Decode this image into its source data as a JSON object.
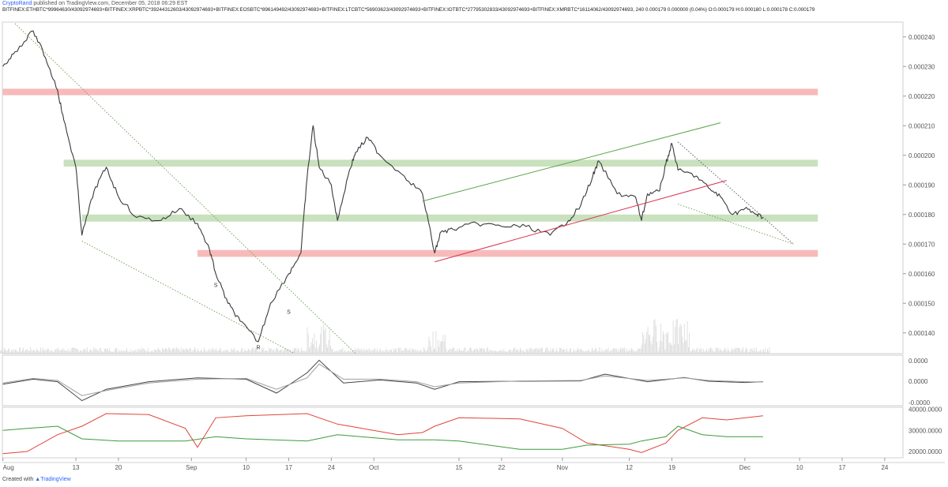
{
  "header": {
    "author": "CryptoRand",
    "published": "published on TradingView.com, December 05, 2018 06:29 EST",
    "symbol_line": "BITFINEX:ETHBTC*99964630/43092974693+BITFINEX:XRPBTC*39244312603/43092974693+BITFINEX:EOSBTC*896149492/43092974693+BITFINEX:LTCBTC*56903623/43092974693+BITFINEX:IOTBTC*27795302833/43092974693+BITFINEX:XMRBTC*16114062/43092974693, 240  0.000179  0.000000 (0.04%)  O:0.000179  H:0.000180  L:0.000178  C:0.000179"
  },
  "footer": {
    "created_with": "Created with",
    "brand": "TradingView"
  },
  "chart_data": {
    "type": "line",
    "interval": "240",
    "x_tick_labels": [
      "Aug",
      "13",
      "20",
      "Sep",
      "10",
      "17",
      "24",
      "Oct",
      "15",
      "22",
      "Nov",
      "12",
      "19",
      "Dec",
      "10",
      "17",
      "24"
    ],
    "main_pane": {
      "y_tick_labels": [
        "0.000240",
        "0.000230",
        "0.000220",
        "0.000210",
        "0.000200",
        "0.000190",
        "0.000180",
        "0.000170",
        "0.000160",
        "0.000150",
        "0.000140"
      ],
      "ylim": [
        0.000133,
        0.000245
      ],
      "series": [
        {
          "name": "",
          "x": [
            "2018-08-01",
            "2018-08-03",
            "2018-08-06",
            "2018-08-08",
            "2018-08-10",
            "2018-08-11",
            "2018-08-13",
            "2018-08-14",
            "2018-08-16",
            "2018-08-18",
            "2018-08-20",
            "2018-08-23",
            "2018-08-27",
            "2018-08-30",
            "2018-09-02",
            "2018-09-04",
            "2018-09-05",
            "2018-09-07",
            "2018-09-09",
            "2018-09-12",
            "2018-09-14",
            "2018-09-17",
            "2018-09-19",
            "2018-09-20",
            "2018-09-21",
            "2018-09-22",
            "2018-09-24",
            "2018-09-25",
            "2018-09-27",
            "2018-09-28",
            "2018-09-30",
            "2018-10-02",
            "2018-10-06",
            "2018-10-09",
            "2018-10-11",
            "2018-10-12",
            "2018-10-14",
            "2018-10-18",
            "2018-10-22",
            "2018-10-26",
            "2018-10-30",
            "2018-11-02",
            "2018-11-04",
            "2018-11-06",
            "2018-11-07",
            "2018-11-10",
            "2018-11-13",
            "2018-11-14",
            "2018-11-15",
            "2018-11-17",
            "2018-11-18",
            "2018-11-19",
            "2018-11-20",
            "2018-11-23",
            "2018-11-25",
            "2018-11-27",
            "2018-11-29",
            "2018-12-01",
            "2018-12-03",
            "2018-12-04"
          ],
          "y": [
            0.00023,
            0.000235,
            0.000242,
            0.000233,
            0.000222,
            0.000212,
            0.000196,
            0.000173,
            0.000188,
            0.000196,
            0.000186,
            0.000179,
            0.000178,
            0.000182,
            0.000177,
            0.000168,
            0.00016,
            0.00015,
            0.000144,
            0.000137,
            0.00015,
            0.00016,
            0.000167,
            0.000192,
            0.00021,
            0.000196,
            0.00019,
            0.000178,
            0.000195,
            0.000201,
            0.000206,
            0.0002,
            0.000193,
            0.000187,
            0.000167,
            0.000174,
            0.000175,
            0.000177,
            0.000176,
            0.000176,
            0.000173,
            0.000178,
            0.000183,
            0.000193,
            0.000198,
            0.000187,
            0.000186,
            0.000178,
            0.000187,
            0.000188,
            0.000197,
            0.000204,
            0.000195,
            0.000193,
            0.000189,
            0.000186,
            0.00018,
            0.000182,
            0.00018,
            0.000179
          ]
        }
      ],
      "zones": [
        {
          "kind": "resistance",
          "color": "#f4a3a3",
          "y_range": [
            0.0002203,
            0.0002225
          ],
          "x_range": [
            "2018-08-01",
            "2018-12-13"
          ]
        },
        {
          "kind": "support",
          "color": "#b7d7a8",
          "y_range": [
            0.0001962,
            0.0001985
          ],
          "x_range": [
            "2018-08-11",
            "2018-12-13"
          ]
        },
        {
          "kind": "support",
          "color": "#b7d7a8",
          "y_range": [
            0.0001776,
            0.00018
          ],
          "x_range": [
            "2018-08-14",
            "2018-12-13"
          ]
        },
        {
          "kind": "resistance",
          "color": "#f4a3a3",
          "y_range": [
            0.0001657,
            0.000168
          ],
          "x_range": [
            "2018-09-02",
            "2018-12-13"
          ]
        }
      ],
      "trendlines": [
        {
          "style": "dotted",
          "color": "#6b9a4f",
          "from": [
            "2018-08-03",
            0.0002445
          ],
          "to": [
            "2018-09-28",
            0.000133
          ]
        },
        {
          "style": "dotted",
          "color": "#6b9a4f",
          "from": [
            "2018-08-14",
            0.000171
          ],
          "to": [
            "2018-09-18",
            0.000133
          ]
        },
        {
          "style": "solid",
          "color": "#5aa44a",
          "from": [
            "2018-10-09",
            0.0001845
          ],
          "to": [
            "2018-11-27",
            0.000211
          ]
        },
        {
          "style": "solid",
          "color": "#d9334f",
          "from": [
            "2018-10-11",
            0.000164
          ],
          "to": [
            "2018-11-28",
            0.0001915
          ]
        },
        {
          "style": "dotted",
          "color": "#555555",
          "from": [
            "2018-11-20",
            0.0002045
          ],
          "to": [
            "2018-12-09",
            0.00017
          ]
        },
        {
          "style": "dotted",
          "color": "#6b9a4f",
          "from": [
            "2018-11-20",
            0.0001835
          ],
          "to": [
            "2018-12-09",
            0.00017
          ]
        }
      ],
      "annotations": [
        {
          "text": "S",
          "x": "2018-09-05",
          "y": 0.0001555
        },
        {
          "text": "R",
          "x": "2018-09-12",
          "y": 0.0001345
        },
        {
          "text": "S",
          "x": "2018-09-17",
          "y": 0.0001465
        }
      ]
    },
    "oscillator_pane": {
      "y_tick_labels": [
        "0.0000",
        "0.0000",
        "-0.0000"
      ],
      "ylim": [
        -1,
        1
      ],
      "series": [
        {
          "name": "",
          "color": "#444444",
          "x": [
            "2018-08-01",
            "2018-08-06",
            "2018-08-10",
            "2018-08-14",
            "2018-08-18",
            "2018-08-25",
            "2018-09-02",
            "2018-09-10",
            "2018-09-15",
            "2018-09-20",
            "2018-09-22",
            "2018-09-26",
            "2018-10-02",
            "2018-10-08",
            "2018-10-11",
            "2018-10-15",
            "2018-10-25",
            "2018-11-04",
            "2018-11-08",
            "2018-11-15",
            "2018-11-21",
            "2018-11-25",
            "2018-12-01",
            "2018-12-04"
          ],
          "y": [
            -0.15,
            0.05,
            -0.05,
            -0.8,
            -0.35,
            -0.05,
            0.1,
            0.05,
            -0.5,
            0.3,
            0.8,
            -0.1,
            0.02,
            -0.1,
            -0.35,
            -0.05,
            -0.03,
            -0.02,
            0.25,
            -0.05,
            0.12,
            -0.03,
            -0.08,
            -0.05
          ]
        },
        {
          "name": "",
          "color": "#9e9e9e",
          "x": [
            "2018-08-01",
            "2018-08-06",
            "2018-08-10",
            "2018-08-14",
            "2018-08-18",
            "2018-08-25",
            "2018-09-02",
            "2018-09-10",
            "2018-09-15",
            "2018-09-20",
            "2018-09-22",
            "2018-09-26",
            "2018-10-02",
            "2018-10-08",
            "2018-10-11",
            "2018-10-15",
            "2018-10-25",
            "2018-11-04",
            "2018-11-08",
            "2018-11-15",
            "2018-11-21",
            "2018-11-25",
            "2018-12-01",
            "2018-12-04"
          ],
          "y": [
            -0.1,
            0.08,
            0.0,
            -0.6,
            -0.4,
            -0.1,
            0.05,
            0.08,
            -0.35,
            0.1,
            0.65,
            0.05,
            0.05,
            -0.05,
            -0.25,
            -0.1,
            -0.02,
            0.0,
            0.18,
            0.0,
            0.1,
            0.0,
            -0.05,
            -0.06
          ]
        }
      ]
    },
    "volatility_pane": {
      "y_tick_labels": [
        "40000.0000",
        "30000.0000",
        "20000.0000"
      ],
      "ylim": [
        17000,
        41000
      ],
      "series": [
        {
          "name": "",
          "color": "#e0453a",
          "x": [
            "2018-08-01",
            "2018-08-05",
            "2018-08-10",
            "2018-08-14",
            "2018-08-18",
            "2018-08-25",
            "2018-08-31",
            "2018-09-02",
            "2018-09-05",
            "2018-09-10",
            "2018-09-20",
            "2018-09-25",
            "2018-10-05",
            "2018-10-09",
            "2018-10-11",
            "2018-10-15",
            "2018-10-25",
            "2018-11-01",
            "2018-11-05",
            "2018-11-12",
            "2018-11-14",
            "2018-11-18",
            "2018-11-20",
            "2018-11-24",
            "2018-11-28",
            "2018-12-04"
          ],
          "y": [
            19000,
            20000,
            28000,
            32000,
            38000,
            37500,
            31000,
            22000,
            36000,
            37000,
            38000,
            33000,
            28000,
            29000,
            32000,
            36000,
            35500,
            31000,
            24000,
            21000,
            19500,
            24000,
            30000,
            36000,
            35000,
            37000
          ]
        },
        {
          "name": "",
          "color": "#3f9a3a",
          "x": [
            "2018-08-01",
            "2018-08-05",
            "2018-08-10",
            "2018-08-14",
            "2018-08-20",
            "2018-08-31",
            "2018-09-05",
            "2018-09-10",
            "2018-09-20",
            "2018-09-25",
            "2018-10-05",
            "2018-10-11",
            "2018-10-15",
            "2018-10-25",
            "2018-11-01",
            "2018-11-05",
            "2018-11-12",
            "2018-11-14",
            "2018-11-18",
            "2018-11-20",
            "2018-11-24",
            "2018-11-28",
            "2018-12-04"
          ],
          "y": [
            30000,
            31000,
            32000,
            26000,
            25000,
            25000,
            27000,
            26000,
            25000,
            28000,
            25500,
            25500,
            25000,
            21000,
            21000,
            23000,
            23500,
            25000,
            27000,
            32000,
            28000,
            27000,
            27000
          ]
        }
      ]
    },
    "volume_note": "volume histogram shown at bottom of main pane"
  }
}
